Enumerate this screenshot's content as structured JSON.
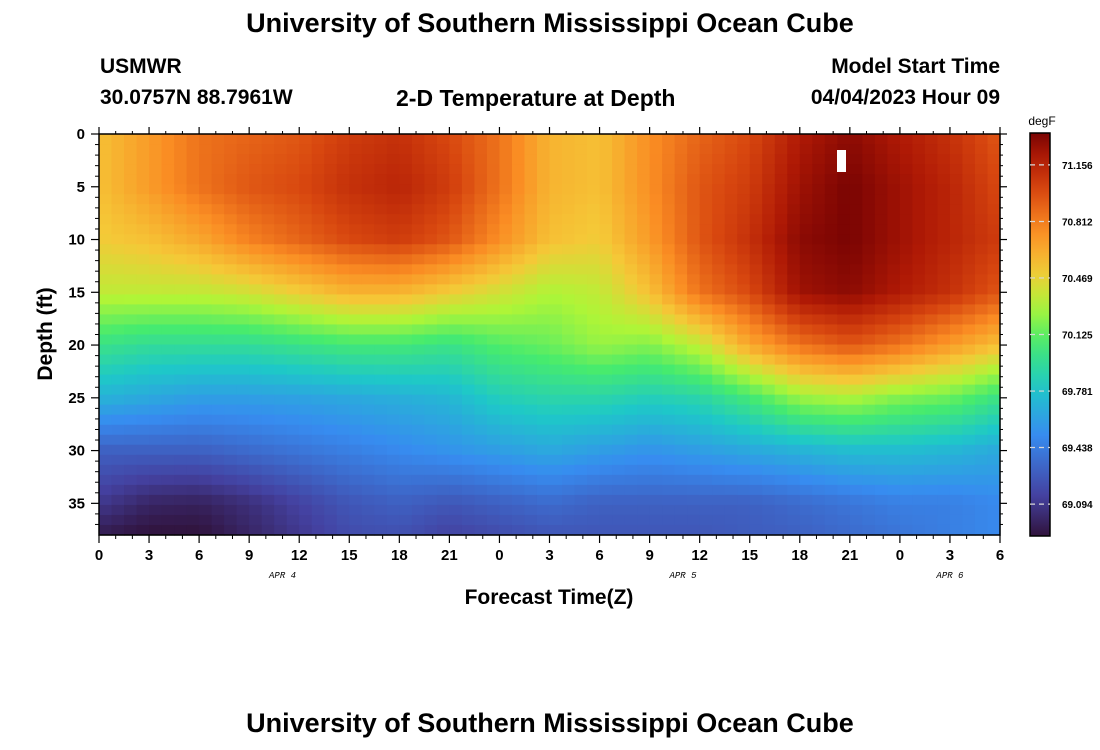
{
  "page": {
    "title": "University of Southern Mississippi Ocean Cube",
    "station": "USMWR",
    "coords": "30.0757N  88.7961W",
    "subtitle": "2-D Temperature at Depth",
    "model_start_label": "Model Start Time",
    "model_start_value": "04/04/2023 Hour 09",
    "footer_title": "University of Southern Mississippi Ocean Cube"
  },
  "chart_data": {
    "type": "heatmap",
    "title": "2-D Temperature at Depth",
    "xlabel": "Forecast Time(Z)",
    "ylabel": "Depth (ft)",
    "x_ticks": [
      "0",
      "3",
      "6",
      "9",
      "12",
      "15",
      "18",
      "21",
      "0",
      "3",
      "6",
      "9",
      "12",
      "15",
      "18",
      "21",
      "0",
      "3",
      "6"
    ],
    "x_range_hours": [
      0,
      54
    ],
    "date_labels": [
      {
        "text": "APR 4",
        "hour": 11
      },
      {
        "text": "APR 5",
        "hour": 35
      },
      {
        "text": "APR 6",
        "hour": 51
      }
    ],
    "y_ticks": [
      0,
      5,
      10,
      15,
      20,
      25,
      30,
      35
    ],
    "ylim": [
      0,
      38
    ],
    "colorbar": {
      "unit": "degF",
      "ticks": [
        "71.156",
        "70.812",
        "70.469",
        "70.125",
        "69.781",
        "69.438",
        "69.094"
      ],
      "range": [
        68.9,
        71.35
      ]
    },
    "temperature_grid": {
      "x_hours": [
        0,
        3,
        6,
        9,
        12,
        15,
        18,
        21,
        24,
        27,
        30,
        33,
        36,
        39,
        42,
        45,
        48,
        51,
        54
      ],
      "depths_ft": [
        0,
        5,
        10,
        15,
        20,
        25,
        30,
        35,
        38
      ],
      "values": [
        [
          70.55,
          70.7,
          70.85,
          70.9,
          70.95,
          71.05,
          71.1,
          71.0,
          70.85,
          70.6,
          70.55,
          70.75,
          70.9,
          71.0,
          71.2,
          71.3,
          71.2,
          71.1,
          70.95
        ],
        [
          70.55,
          70.7,
          70.85,
          70.95,
          71.0,
          71.1,
          71.15,
          71.05,
          70.85,
          70.6,
          70.55,
          70.75,
          70.95,
          71.05,
          71.25,
          71.35,
          71.25,
          71.15,
          71.0
        ],
        [
          70.5,
          70.55,
          70.65,
          70.8,
          70.9,
          71.0,
          71.05,
          70.95,
          70.75,
          70.55,
          70.5,
          70.7,
          70.95,
          71.1,
          71.3,
          71.35,
          71.25,
          71.15,
          71.05
        ],
        [
          70.35,
          70.35,
          70.35,
          70.4,
          70.5,
          70.6,
          70.6,
          70.5,
          70.4,
          70.3,
          70.35,
          70.55,
          70.85,
          71.0,
          71.25,
          71.3,
          71.2,
          71.1,
          70.95
        ],
        [
          70.0,
          69.95,
          69.95,
          69.95,
          70.0,
          70.05,
          70.05,
          70.0,
          70.1,
          70.15,
          70.25,
          70.2,
          70.35,
          70.65,
          70.85,
          70.95,
          70.85,
          70.7,
          70.55
        ],
        [
          69.7,
          69.65,
          69.6,
          69.6,
          69.62,
          69.65,
          69.68,
          69.72,
          69.85,
          69.9,
          69.9,
          69.85,
          69.9,
          70.05,
          70.25,
          70.3,
          70.2,
          70.15,
          70.0
        ],
        [
          69.3,
          69.3,
          69.3,
          69.35,
          69.4,
          69.45,
          69.5,
          69.55,
          69.6,
          69.65,
          69.6,
          69.55,
          69.6,
          69.65,
          69.7,
          69.75,
          69.75,
          69.72,
          69.65
        ],
        [
          69.1,
          69.0,
          68.98,
          69.05,
          69.15,
          69.25,
          69.3,
          69.25,
          69.3,
          69.35,
          69.3,
          69.3,
          69.3,
          69.3,
          69.35,
          69.4,
          69.45,
          69.45,
          69.5
        ],
        [
          68.95,
          68.9,
          68.9,
          69.0,
          69.1,
          69.2,
          69.22,
          69.15,
          69.2,
          69.25,
          69.25,
          69.25,
          69.25,
          69.28,
          69.3,
          69.35,
          69.4,
          69.45,
          69.5
        ]
      ]
    }
  }
}
